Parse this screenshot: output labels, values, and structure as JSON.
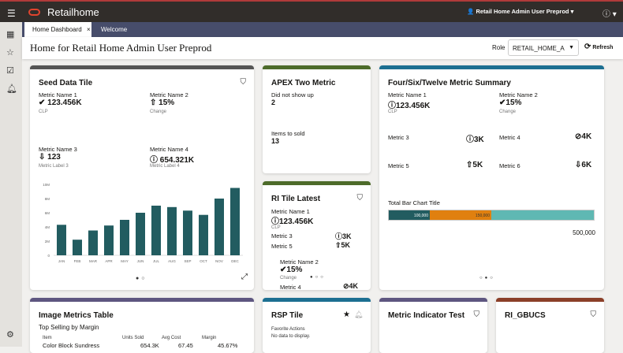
{
  "header": {
    "app_name": "Retailhome",
    "user": "Retail Home Admin User Preprod"
  },
  "tabs": [
    {
      "label": "Home Dashboard"
    },
    {
      "label": "Welcome"
    }
  ],
  "page": {
    "title": "Home for Retail Home Admin User Preprod",
    "role_label": "Role",
    "role_value": "RETAIL_HOME_A",
    "refresh_label": "Refresh"
  },
  "colors": {
    "seed": "#5a5c5c",
    "apex": "#4d6b2a",
    "ri": "#4d6b2a",
    "summary": "#1c6f91",
    "image": "#5e5680",
    "rsp": "#1c6f91",
    "indicator": "#5e5680",
    "gbucs": "#8b3f28",
    "bar": "#225c60",
    "orange": "#e0800f",
    "aqua": "#5fb8b3"
  },
  "seed": {
    "title": "Seed Data Tile",
    "m1": {
      "name": "Metric Name 1",
      "value": "123.456K",
      "label": "CLP",
      "icon": "check-circle-icon"
    },
    "m2": {
      "name": "Metric Name 2",
      "value": "15%",
      "label": "Change",
      "icon": "arrow-up-icon"
    },
    "m3": {
      "name": "Metric Name 3",
      "value": "123",
      "label": "Metric Label 3",
      "icon": "arrow-down-icon"
    },
    "m4": {
      "name": "Metric Name 4",
      "value": "654.321K",
      "label": "Metric Label 4",
      "icon": "info-icon"
    }
  },
  "chart_data": {
    "type": "bar",
    "categories": [
      "JAN",
      "FEB",
      "MAR",
      "APR",
      "MAY",
      "JUN",
      "JUL",
      "AUG",
      "SEP",
      "OCT",
      "NOV",
      "DEC"
    ],
    "values": [
      4.3,
      2.2,
      3.5,
      4.2,
      5.0,
      6.0,
      7.0,
      6.8,
      6.3,
      5.7,
      8.0,
      9.5
    ],
    "yticks": [
      "0",
      "2M",
      "4M",
      "6M",
      "8M",
      "10M"
    ],
    "ylim": [
      0,
      10
    ],
    "unit": "M"
  },
  "apex": {
    "title": "APEX Two Metric",
    "m1": {
      "name": "Did not show up",
      "value": "2"
    },
    "m2": {
      "name": "Items to sold",
      "value": "13"
    }
  },
  "ri": {
    "title": "RI Tile Latest",
    "m1": {
      "name": "Metric Name 1",
      "value": "123.456K",
      "label": "CLP"
    },
    "m3": {
      "name": "Metric 3",
      "value": "3K"
    },
    "m5": {
      "name": "Metric 5",
      "value": "5K"
    },
    "m2": {
      "name": "Metric Name 2",
      "value": "15%",
      "label": "Change"
    },
    "m4": {
      "name": "Metric 4",
      "value": "4K"
    }
  },
  "summary": {
    "title": "Four/Six/Twelve Metric Summary",
    "m1": {
      "name": "Metric Name 1",
      "value": "123.456K",
      "label": "CLP"
    },
    "m2": {
      "name": "Metric Name 2",
      "value": "15%",
      "label": "Change"
    },
    "m3": {
      "name": "Metric 3",
      "value": "3K"
    },
    "m4": {
      "name": "Metric 4",
      "value": "4K"
    },
    "m5": {
      "name": "Metric 5",
      "value": "5K"
    },
    "m6": {
      "name": "Metric 6",
      "value": "6K"
    },
    "total": {
      "title": "Total Bar Chart Title",
      "seg1": "100,000",
      "seg2": "150,000",
      "max": "500,000",
      "values": [
        100000,
        150000,
        250000
      ]
    }
  },
  "image": {
    "title": "Image Metrics Table",
    "subtitle": "Top Selling by Margin",
    "columns": [
      "Item",
      "Units Sold",
      "Avg Cost",
      "Margin"
    ],
    "rows": [
      [
        "Color Block Sundress",
        "654.3K",
        "67.45",
        "45.67%"
      ]
    ]
  },
  "rsp": {
    "title": "RSP Tile",
    "l1": "Favorite Actions",
    "l2": "No data to display."
  },
  "indicator": {
    "title": "Metric Indicator Test"
  },
  "gbucs": {
    "title": "RI_GBUCS"
  }
}
